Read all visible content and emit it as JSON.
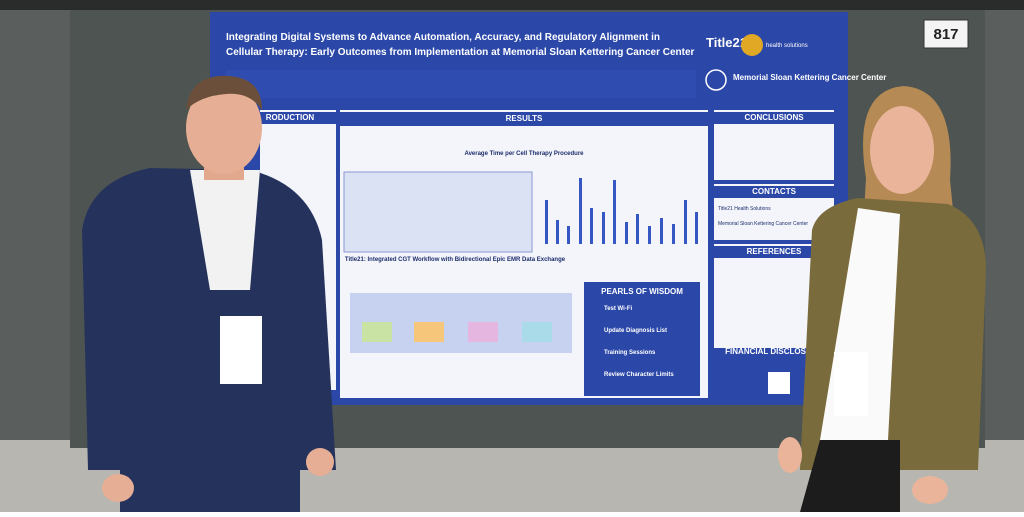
{
  "board_number": "817",
  "poster": {
    "title": "Integrating Digital Systems to Advance Automation, Accuracy, and Regulatory Alignment in Cellular Therapy: Early Outcomes from Implementation at Memorial Sloan Kettering Cancer Center",
    "logos": {
      "title21": "Title21",
      "title21_sub": "health solutions",
      "msk": "Memorial Sloan Kettering Cancer Center"
    },
    "sections": {
      "introduction": "RODUCTION",
      "results": "RESULTS",
      "conclusions": "CONCLUSIONS",
      "contacts": "CONTACTS",
      "references": "REFERENCES",
      "financial": "FINANCIAL DISCLOSURE"
    },
    "chart_title": "Average Time per Cell Therapy Procedure",
    "workflow_title": "Title21: Integrated CGT Workflow with Bidirectional Epic EMR Data Exchange",
    "contacts": [
      "Title21 Health Solutions",
      "Memorial Sloan Kettering Cancer Center"
    ],
    "pearls": {
      "title": "PEARLS OF WISDOM",
      "items": [
        "Test Wi-Fi",
        "Update Diagnosis List",
        "Training Sessions",
        "Review Character Limits"
      ]
    }
  }
}
